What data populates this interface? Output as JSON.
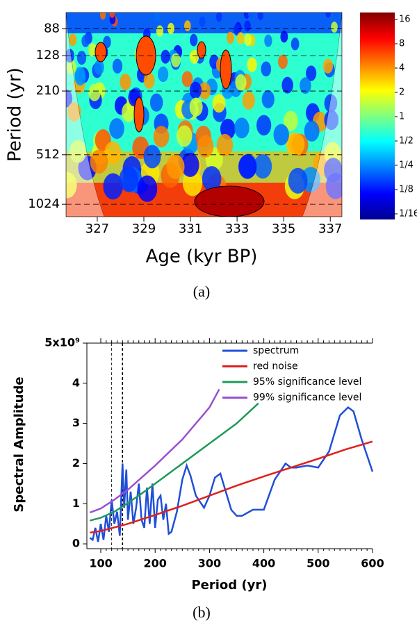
{
  "chart_data": [
    {
      "type": "heatmap",
      "caption": "(a)",
      "xlabel": "Age (kyr BP)",
      "ylabel": "Period (yr)",
      "xlim": [
        325.66,
        337.5
      ],
      "xticks": [
        327,
        329,
        331,
        333,
        335,
        337
      ],
      "ylim": [
        70,
        1218
      ],
      "yscale": "log",
      "yticks": [
        88,
        128,
        210,
        512,
        1024
      ],
      "grid": true,
      "clim": [
        0.0533,
        19.5
      ],
      "cscale": "log",
      "cticks": [
        16,
        8,
        4,
        2,
        1,
        {
          "value": 0.5,
          "label": "1/2"
        },
        {
          "value": 0.25,
          "label": "1/4"
        },
        {
          "value": 0.125,
          "label": "1/8"
        },
        {
          "value": 0.0625,
          "label": "1/16"
        }
      ]
    },
    {
      "type": "line",
      "caption": "(b)",
      "xlabel": "Period (yr)",
      "ylabel": "Spectral Amplitude",
      "xlim": [
        74.4,
        600
      ],
      "xticks": [
        100,
        200,
        300,
        400,
        500,
        600
      ],
      "ylim": [
        -0.12,
        5
      ],
      "yticks": [
        0,
        1,
        2,
        3,
        4,
        {
          "value": 5,
          "label": "5x10⁹"
        }
      ],
      "vlines": [
        120,
        140
      ],
      "series": [
        {
          "name": "spectrum",
          "color": "#1f4fd8",
          "x": [
            80,
            85,
            90,
            95,
            100,
            105,
            110,
            115,
            120,
            125,
            130,
            135,
            140,
            143,
            147,
            150,
            155,
            160,
            165,
            170,
            175,
            180,
            185,
            190,
            195,
            200,
            205,
            210,
            215,
            220,
            225,
            230,
            240,
            250,
            258,
            265,
            275,
            290,
            300,
            310,
            320,
            330,
            340,
            350,
            360,
            380,
            400,
            420,
            440,
            450,
            460,
            480,
            500,
            520,
            540,
            555,
            565,
            580,
            600
          ],
          "values": [
            0.15,
            0.1,
            0.4,
            0.05,
            0.5,
            0.1,
            0.7,
            0.3,
            1.1,
            0.5,
            0.8,
            0.2,
            2.0,
            0.9,
            1.85,
            0.6,
            1.3,
            0.5,
            0.9,
            1.5,
            0.6,
            0.4,
            1.4,
            0.5,
            1.5,
            0.4,
            1.1,
            1.2,
            0.6,
            1.0,
            0.25,
            0.3,
            0.8,
            1.6,
            1.95,
            1.7,
            1.2,
            0.9,
            1.2,
            1.65,
            1.75,
            1.3,
            0.85,
            0.7,
            0.7,
            0.85,
            0.85,
            1.6,
            2.0,
            1.9,
            1.9,
            1.95,
            1.9,
            2.3,
            3.2,
            3.4,
            3.3,
            2.6,
            1.8
          ]
        },
        {
          "name": "red noise",
          "color": "#e0201b",
          "x": [
            80,
            100,
            150,
            200,
            250,
            300,
            350,
            400,
            450,
            500,
            550,
            600
          ],
          "values": [
            0.28,
            0.32,
            0.5,
            0.72,
            0.95,
            1.2,
            1.45,
            1.68,
            1.9,
            2.12,
            2.35,
            2.55
          ]
        },
        {
          "name": "95% significance level",
          "color": "#1e9a5a",
          "x": [
            80,
            100,
            125,
            150,
            175,
            200,
            250,
            300,
            350,
            390
          ],
          "values": [
            0.58,
            0.65,
            0.8,
            1.02,
            1.25,
            1.5,
            2.0,
            2.5,
            3.0,
            3.5
          ]
        },
        {
          "name": "99% significance level",
          "color": "#9a4fd0",
          "x": [
            80,
            100,
            125,
            150,
            175,
            200,
            250,
            300,
            318
          ],
          "values": [
            0.78,
            0.88,
            1.1,
            1.35,
            1.65,
            1.95,
            2.6,
            3.4,
            3.85
          ]
        }
      ]
    }
  ]
}
